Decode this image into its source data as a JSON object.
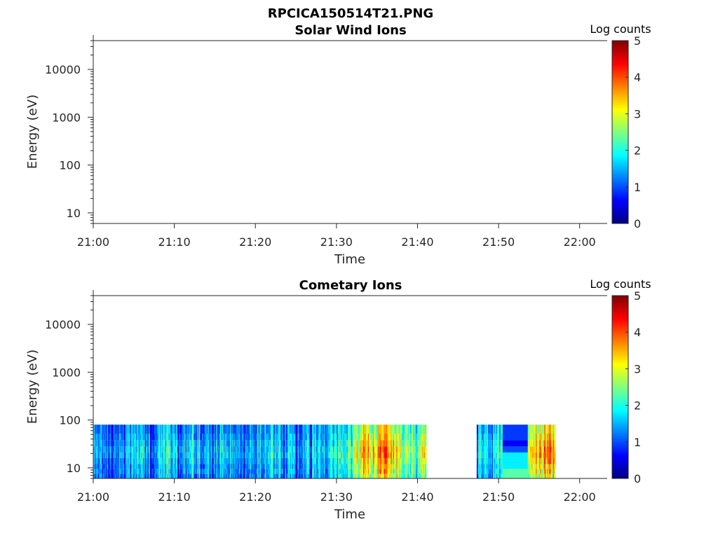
{
  "figure_title": "RPCICA150514T21.PNG",
  "chart_data": [
    {
      "type": "heatmap",
      "title": "Solar Wind Ions",
      "xlabel": "Time",
      "ylabel": "Energy (eV)",
      "yscale": "log",
      "ylim": [
        6,
        40000
      ],
      "xlim_minutes_after_21_00": [
        0,
        63.4
      ],
      "xticks": [
        {
          "t": 0,
          "label": "21:00"
        },
        {
          "t": 10,
          "label": "21:10"
        },
        {
          "t": 20,
          "label": "21:20"
        },
        {
          "t": 30,
          "label": "21:30"
        },
        {
          "t": 40,
          "label": "21:40"
        },
        {
          "t": 50,
          "label": "21:50"
        },
        {
          "t": 60,
          "label": "22:00"
        }
      ],
      "yticks": [
        {
          "v": 10,
          "label": "10"
        },
        {
          "v": 100,
          "label": "100"
        },
        {
          "v": 1000,
          "label": "1000"
        },
        {
          "v": 10000,
          "label": "10000"
        }
      ],
      "colorbar": {
        "label": "Log counts",
        "range": [
          0,
          5
        ],
        "ticks": [
          "0",
          "1",
          "2",
          "3",
          "4",
          "5"
        ],
        "colormap": "jet"
      },
      "columns": []
    },
    {
      "type": "heatmap",
      "title": "Cometary Ions",
      "xlabel": "Time",
      "ylabel": "Energy (eV)",
      "yscale": "log",
      "ylim": [
        6,
        40000
      ],
      "xlim_minutes_after_21_00": [
        0,
        63.4
      ],
      "xticks": [
        {
          "t": 0,
          "label": "21:00"
        },
        {
          "t": 10,
          "label": "21:10"
        },
        {
          "t": 20,
          "label": "21:20"
        },
        {
          "t": 30,
          "label": "21:30"
        },
        {
          "t": 40,
          "label": "21:40"
        },
        {
          "t": 50,
          "label": "21:50"
        },
        {
          "t": 60,
          "label": "22:00"
        }
      ],
      "yticks": [
        {
          "v": 10,
          "label": "10"
        },
        {
          "v": 100,
          "label": "100"
        },
        {
          "v": 1000,
          "label": "1000"
        },
        {
          "v": 10000,
          "label": "10000"
        }
      ],
      "colorbar": {
        "label": "Log counts",
        "range": [
          0,
          5
        ],
        "ticks": [
          "0",
          "1",
          "2",
          "3",
          "4",
          "5"
        ],
        "colormap": "jet"
      },
      "energy_bins_eV": [
        6,
        7.5,
        9.5,
        12,
        16,
        21,
        28,
        38,
        52,
        80
      ],
      "energy_profile_offset": [
        0.0,
        0.1,
        0.1,
        0.2,
        0.3,
        0.3,
        0.2,
        0.1,
        0.0
      ],
      "columns": [
        {
          "t": 0,
          "v": 1.2
        },
        {
          "t": 1,
          "v": 1.0
        },
        {
          "t": 2,
          "v": 0.8
        },
        {
          "t": 3,
          "v": 1.0
        },
        {
          "t": 4,
          "v": 1.4
        },
        {
          "t": 5,
          "v": 1.5
        },
        {
          "t": 6,
          "v": 0.9
        },
        {
          "t": 7,
          "v": 1.0
        },
        {
          "t": 8,
          "v": 1.5
        },
        {
          "t": 9,
          "v": 1.6
        },
        {
          "t": 10,
          "v": 1.1
        },
        {
          "t": 11,
          "v": 1.3
        },
        {
          "t": 12,
          "v": 1.6
        },
        {
          "t": 13,
          "v": 0.9
        },
        {
          "t": 14,
          "v": 1.0
        },
        {
          "t": 15,
          "v": 1.5
        },
        {
          "t": 16,
          "v": 1.2
        },
        {
          "t": 17,
          "v": 1.3
        },
        {
          "t": 18,
          "v": 0.9
        },
        {
          "t": 19,
          "v": 1.0
        },
        {
          "t": 20,
          "v": 1.3
        },
        {
          "t": 21,
          "v": 1.4
        },
        {
          "t": 22,
          "v": 1.5
        },
        {
          "t": 23,
          "v": 1.1
        },
        {
          "t": 24,
          "v": 1.3
        },
        {
          "t": 25,
          "v": 0.9
        },
        {
          "t": 26,
          "v": 1.2
        },
        {
          "t": 27,
          "v": 1.4
        },
        {
          "t": 28,
          "v": 1.2
        },
        {
          "t": 29,
          "v": 1.5
        },
        {
          "t": 30,
          "v": 1.6
        },
        {
          "t": 31,
          "v": 1.9
        },
        {
          "t": 32,
          "v": 2.4
        },
        {
          "t": 33,
          "v": 3.0
        },
        {
          "t": 34,
          "v": 2.6
        },
        {
          "t": 35,
          "v": 3.1
        },
        {
          "t": 36,
          "v": 3.0
        },
        {
          "t": 37,
          "v": 2.8
        },
        {
          "t": 38,
          "v": 2.3
        },
        {
          "t": 39,
          "v": 2.0
        },
        {
          "t": 40,
          "v": 2.5
        },
        {
          "t": 47.3,
          "v": 1.3
        },
        {
          "t": 48.3,
          "v": 1.4
        },
        {
          "t": 49.3,
          "v": 1.7
        },
        {
          "t": 53.6,
          "v": 2.5
        },
        {
          "t": 54.6,
          "v": 3.0
        },
        {
          "t": 55.6,
          "v": 3.2
        }
      ],
      "banded_block": {
        "t_start": 50.5,
        "t_end": 53.6,
        "values_by_bin": [
          2.3,
          2.3,
          1.8,
          1.8,
          1.8,
          1.0,
          0.6,
          0.9,
          0.9
        ]
      },
      "data_segments": [
        {
          "t_start": 0,
          "t_end": 41.1
        },
        {
          "t_start": 47.3,
          "t_end": 57.0
        }
      ]
    }
  ]
}
